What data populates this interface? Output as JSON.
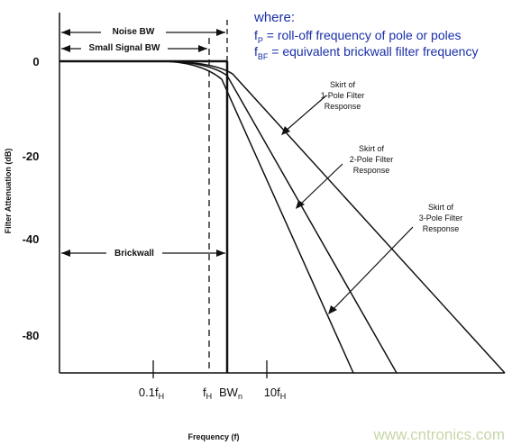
{
  "legend": {
    "where": "where:",
    "fp_symbol": "f",
    "fp_sub": "P",
    "fp_text": " = roll-off frequency of pole or poles",
    "fbf_symbol": "f",
    "fbf_sub": "BF",
    "fbf_text": " = equivalent brickwall filter frequency"
  },
  "labels": {
    "noise_bw": "Noise BW",
    "small_signal_bw": "Small Signal BW",
    "brickwall": "Brickwall",
    "y_axis": "Filter Attenuation (dB)",
    "x_axis": "Frequency (f)",
    "skirt1": [
      "Skirt of",
      "1-Pole Filter",
      "Response"
    ],
    "skirt2": [
      "Skirt of",
      "2-Pole Filter",
      "Response"
    ],
    "skirt3": [
      "Skirt of",
      "3-Pole Filter",
      "Response"
    ]
  },
  "y_ticks": [
    "0",
    "-20",
    "-40",
    "-80"
  ],
  "x_ticks": {
    "t1_main": "0.1f",
    "t1_sub": "H",
    "t2_main": "f",
    "t2_sub": "H",
    "t3_main": "BW",
    "t3_sub": "n",
    "t4_main": "10f",
    "t4_sub": "H"
  },
  "watermark": "www.cntronics.com",
  "colors": {
    "legend_text": "#1a2fa8",
    "lines": "#111111",
    "watermark": "#c7d7a8"
  }
}
